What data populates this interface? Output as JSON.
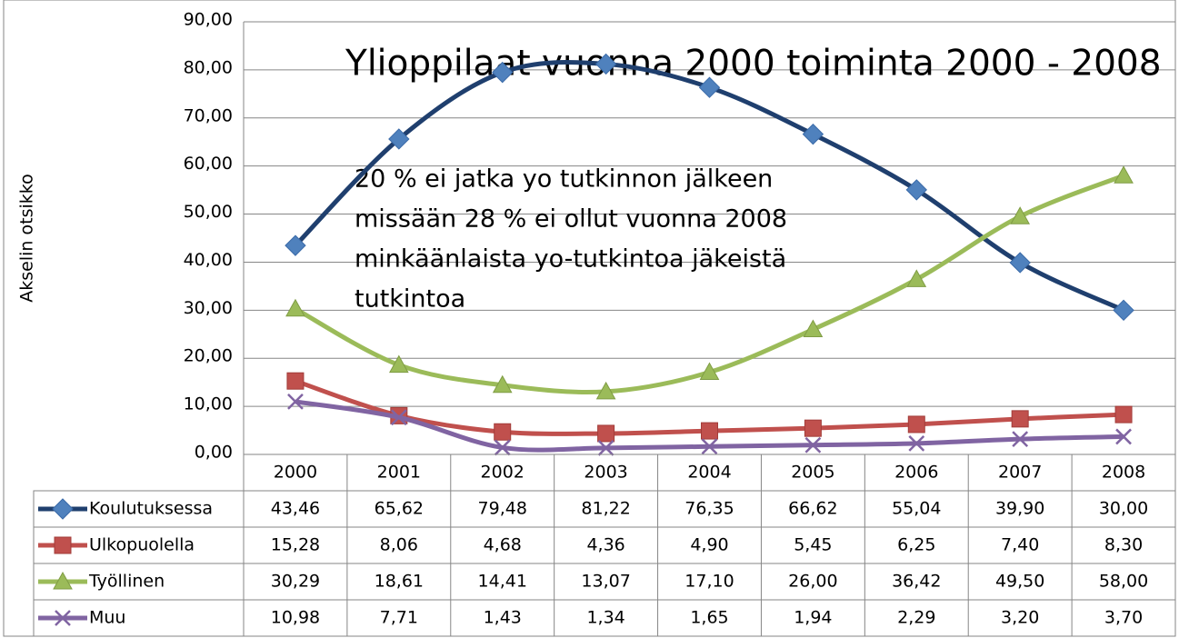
{
  "chart_data": {
    "type": "line",
    "title": "Ylioppilaat vuonna 2000 toiminta 2000 - 2008",
    "annotation": [
      "20 % ei jatka yo tutkinnon jälkeen",
      "missään 28 % ei ollut vuonna 2008",
      "minkäänlaista yo-tutkintoa jäkeistä",
      "tutkintoa"
    ],
    "y_label": "Akselin otsikko",
    "categories": [
      "2000",
      "2001",
      "2002",
      "2003",
      "2004",
      "2005",
      "2006",
      "2007",
      "2008"
    ],
    "series": [
      {
        "name": "Koulutuksessa",
        "color": "#4f81bd",
        "line_color": "#1f3f6e",
        "marker": "diamond",
        "values": [
          43.46,
          65.62,
          79.48,
          81.22,
          76.35,
          66.62,
          55.04,
          39.9,
          30.0
        ],
        "value_labels": [
          "43,46",
          "65,62",
          "79,48",
          "81,22",
          "76,35",
          "66,62",
          "55,04",
          "39,90",
          "30,00"
        ]
      },
      {
        "name": "Ulkopuolella",
        "color": "#c0504d",
        "line_color": "#c0504d",
        "marker": "square",
        "values": [
          15.28,
          8.06,
          4.68,
          4.36,
          4.9,
          5.45,
          6.25,
          7.4,
          8.3
        ],
        "value_labels": [
          "15,28",
          "8,06",
          "4,68",
          "4,36",
          "4,90",
          "5,45",
          "6,25",
          "7,40",
          "8,30"
        ]
      },
      {
        "name": "Työllinen",
        "color": "#9bbb59",
        "line_color": "#9bbb59",
        "marker": "triangle",
        "values": [
          30.29,
          18.61,
          14.41,
          13.07,
          17.1,
          26.0,
          36.42,
          49.5,
          58.0
        ],
        "value_labels": [
          "30,29",
          "18,61",
          "14,41",
          "13,07",
          "17,10",
          "26,00",
          "36,42",
          "49,50",
          "58,00"
        ]
      },
      {
        "name": "Muu",
        "color": "#8064a2",
        "line_color": "#8064a2",
        "marker": "x",
        "values": [
          10.98,
          7.71,
          1.43,
          1.34,
          1.65,
          1.94,
          2.29,
          3.2,
          3.7
        ],
        "value_labels": [
          "10,98",
          "7,71",
          "1,43",
          "1,34",
          "1,65",
          "1,94",
          "2,29",
          "3,20",
          "3,70"
        ]
      }
    ],
    "ylim": [
      0,
      90
    ],
    "yticks": [
      {
        "value": 0,
        "label": "0,00"
      },
      {
        "value": 10,
        "label": "10,00"
      },
      {
        "value": 20,
        "label": "20,00"
      },
      {
        "value": 30,
        "label": "30,00"
      },
      {
        "value": 40,
        "label": "40,00"
      },
      {
        "value": 50,
        "label": "50,00"
      },
      {
        "value": 60,
        "label": "60,00"
      },
      {
        "value": 70,
        "label": "70,00"
      },
      {
        "value": 80,
        "label": "80,00"
      },
      {
        "value": 90,
        "label": "90,00"
      }
    ],
    "grid": true
  }
}
